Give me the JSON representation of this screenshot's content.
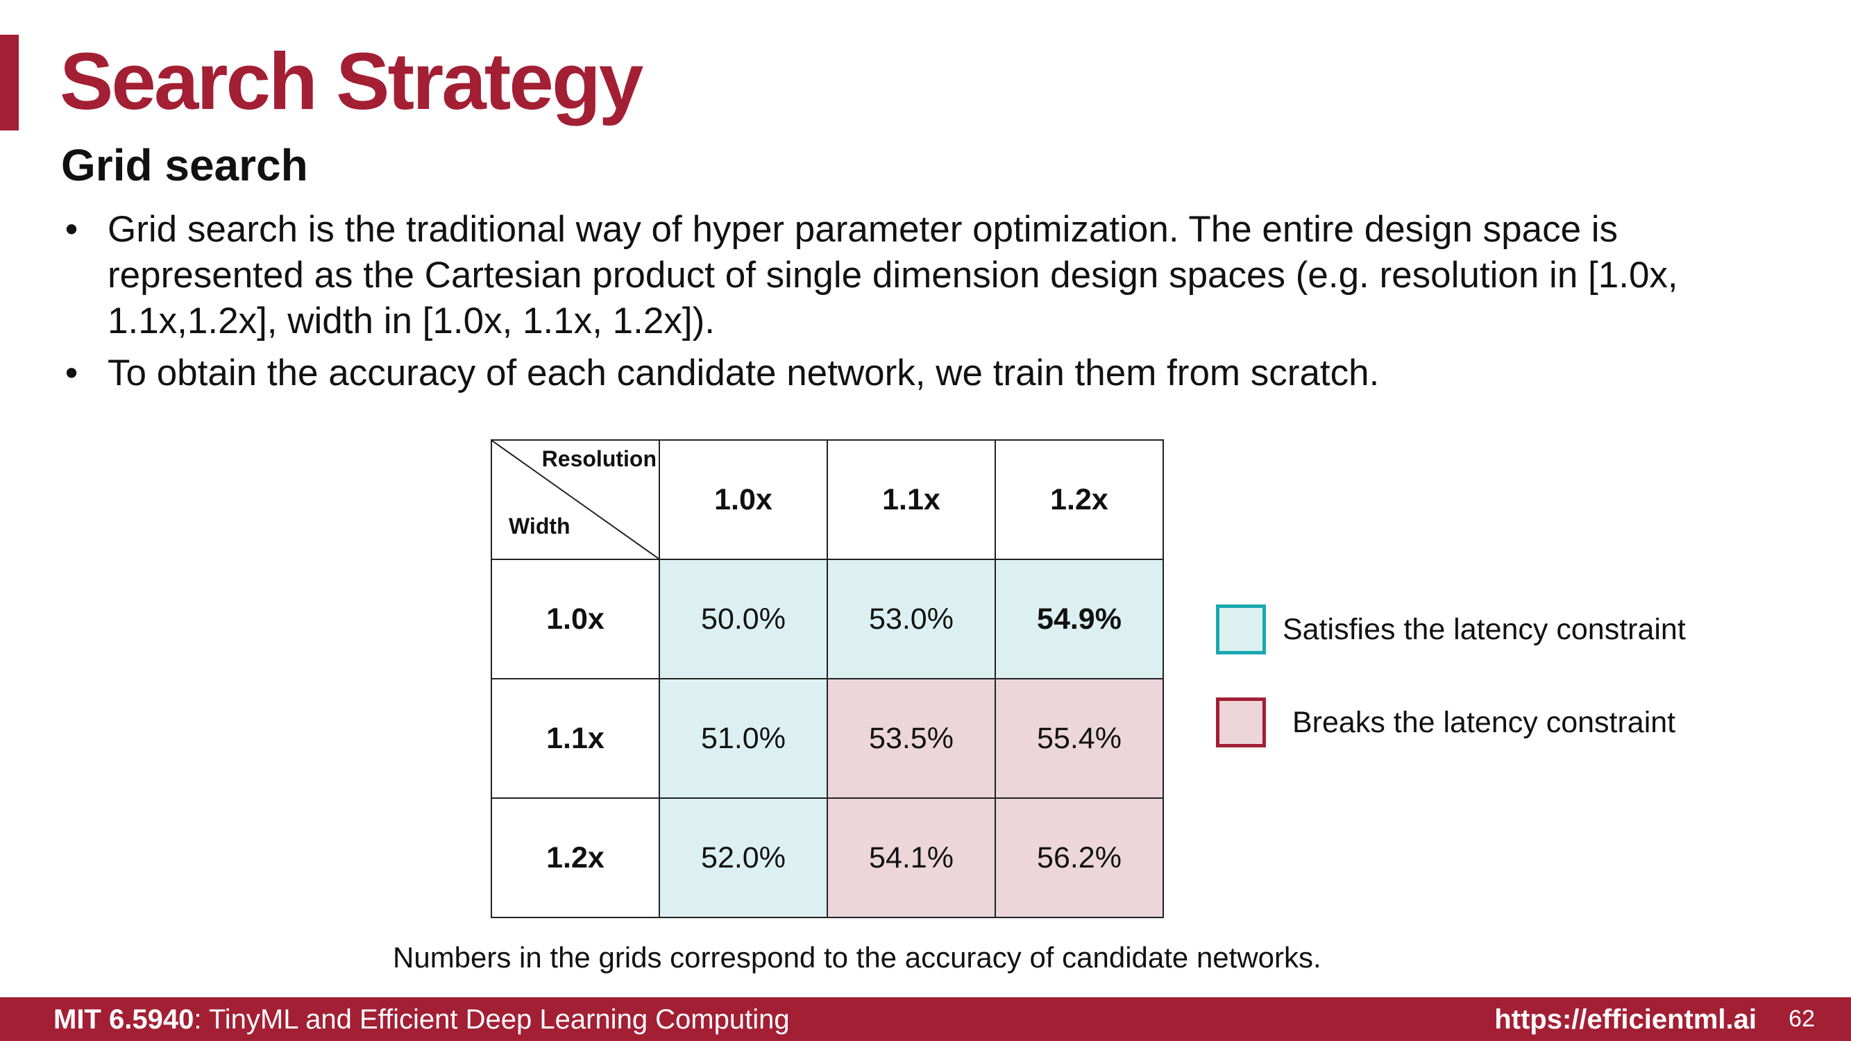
{
  "slide": {
    "title": "Search Strategy",
    "subtitle": "Grid search",
    "bullet_symbol": "•",
    "bullets": [
      "Grid search is the traditional way of hyper parameter optimization. The entire design space is represented as the Cartesian product of single dimension design spaces (e.g. resolution in [1.0x, 1.1x,1.2x], width in [1.0x, 1.1x, 1.2x]).",
      "To obtain the accuracy of each candidate network, we train them from scratch."
    ]
  },
  "table": {
    "corner_top": "Resolution",
    "corner_bottom": "Width",
    "col_headers": [
      "1.0x",
      "1.1x",
      "1.2x"
    ],
    "rows": [
      {
        "header": "1.0x",
        "cells": [
          "50.0%",
          "53.0%",
          "54.9%"
        ]
      },
      {
        "header": "1.1x",
        "cells": [
          "51.0%",
          "53.5%",
          "55.4%"
        ]
      },
      {
        "header": "1.2x",
        "cells": [
          "52.0%",
          "54.1%",
          "56.2%"
        ]
      }
    ],
    "cell_status": [
      [
        "satisfies",
        "satisfies",
        "satisfies"
      ],
      [
        "satisfies",
        "breaks",
        "breaks"
      ],
      [
        "satisfies",
        "breaks",
        "breaks"
      ]
    ],
    "highlighted_cell": "54.9%"
  },
  "legend": {
    "satisfies_label": "Satisfies the latency constraint",
    "breaks_label": "Breaks the latency constraint",
    "satisfies_border": "#1aa9b0",
    "satisfies_fill": "#dcf0f2",
    "breaks_border": "#a31f34",
    "breaks_fill": "#ecd6da"
  },
  "caption": "Numbers in the grids correspond to the accuracy of candidate networks.",
  "footer": {
    "course_code": "MIT 6.5940",
    "course_title": ": TinyML and Efficient Deep Learning Computing",
    "url": "https://efficientml.ai",
    "page_number": "62"
  },
  "colors": {
    "brand": "#a31f34"
  }
}
